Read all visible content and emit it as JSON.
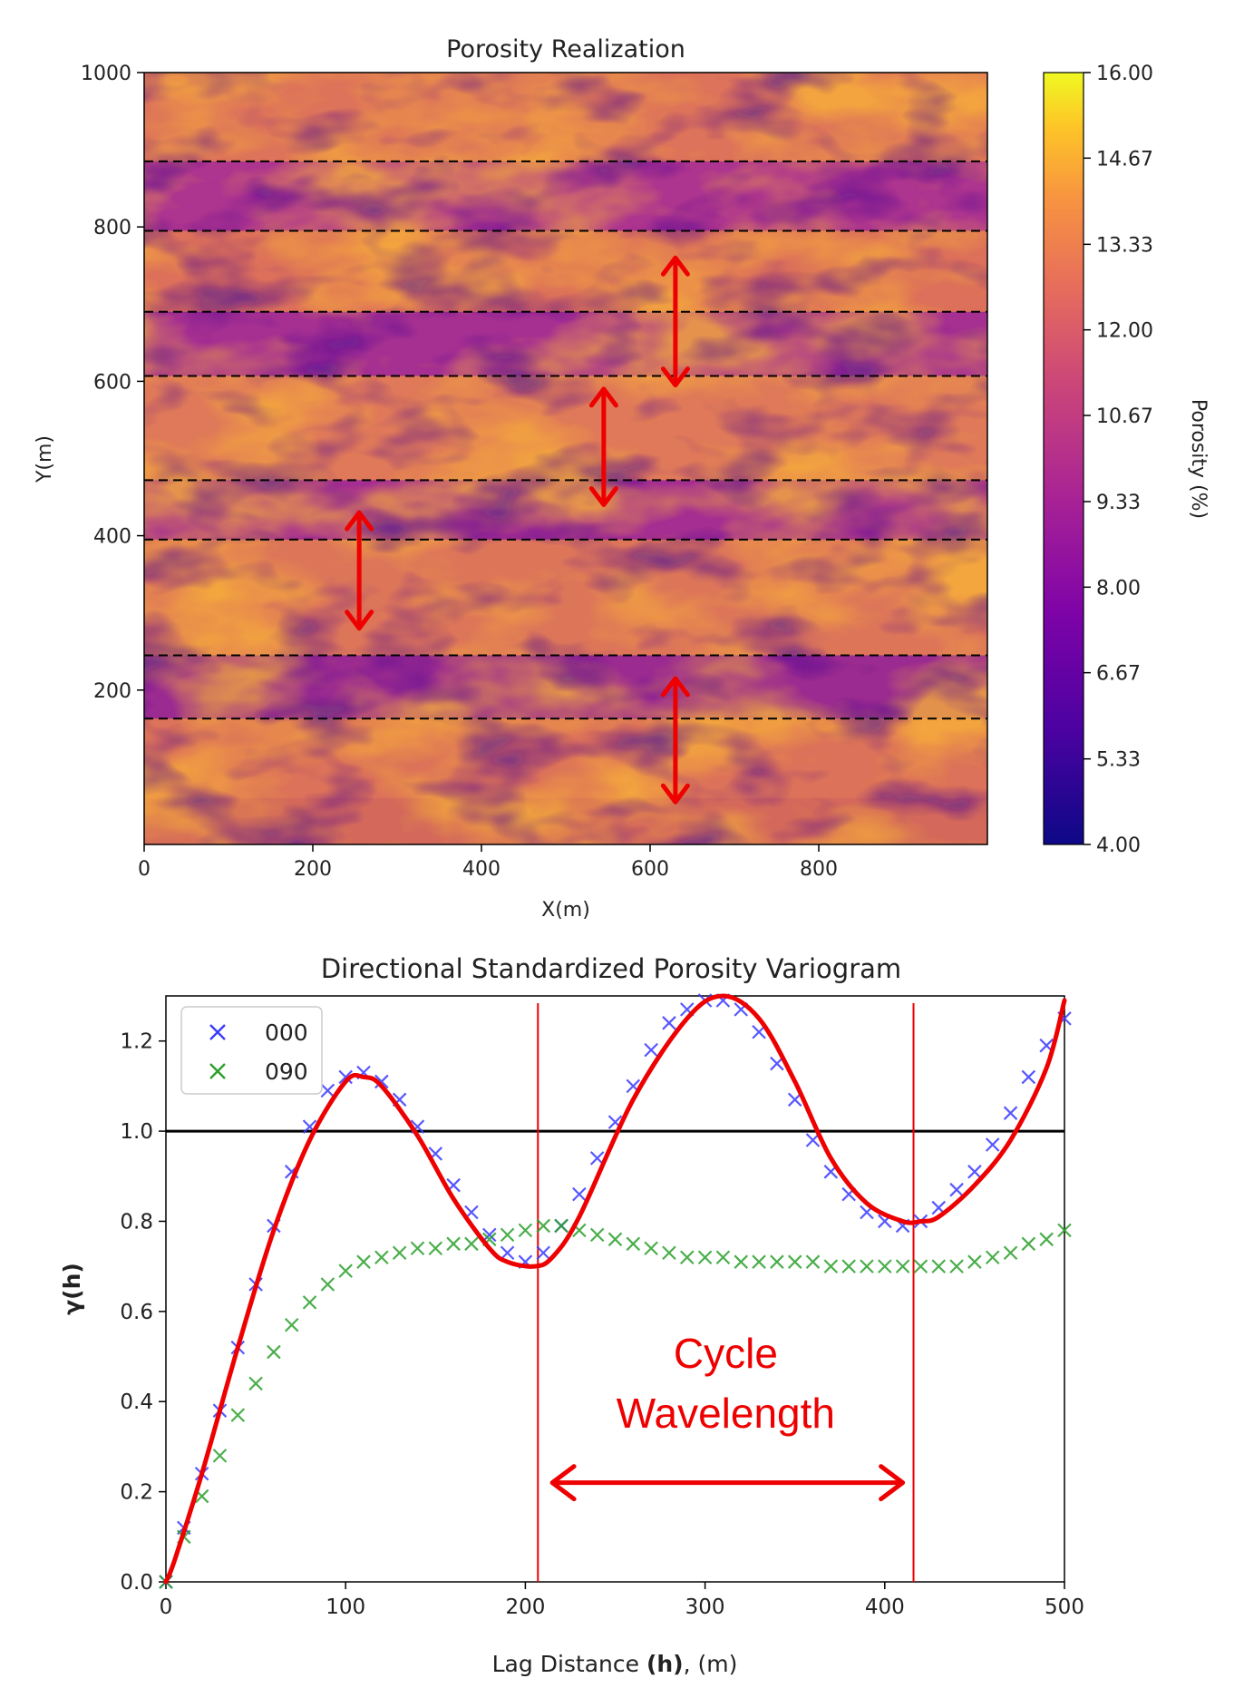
{
  "chart_data": [
    {
      "type": "heatmap",
      "title": "Porosity Realization",
      "xlabel": "X(m)",
      "ylabel": "Y(m)",
      "xlim": [
        0,
        1000
      ],
      "ylim": [
        0,
        1000
      ],
      "x_ticks": [
        "0",
        "200",
        "400",
        "600",
        "800"
      ],
      "y_ticks": [
        "200",
        "400",
        "600",
        "800",
        "1000"
      ],
      "colorbar": {
        "label": "Porosity (%)",
        "range": [
          4.0,
          16.0
        ],
        "ticks": [
          "16.00",
          "14.67",
          "13.33",
          "12.00",
          "10.67",
          "9.33",
          "8.00",
          "6.67",
          "5.33",
          "4.00"
        ],
        "colormap": "plasma"
      },
      "dashed_lines_y": [
        885,
        795,
        690,
        607,
        472,
        395,
        245,
        163
      ],
      "double_arrows": [
        {
          "x": 630,
          "y_from": 595,
          "y_to": 760
        },
        {
          "x": 545,
          "y_from": 440,
          "y_to": 590
        },
        {
          "x": 255,
          "y_from": 280,
          "y_to": 430
        },
        {
          "x": 630,
          "y_from": 55,
          "y_to": 215
        }
      ],
      "colors": {
        "dashes": "#000000",
        "arrows": "#ee0000"
      }
    },
    {
      "type": "scatter",
      "title": "Directional Standardized Porosity Variogram",
      "xlabel_prefix": "Lag Distance ",
      "xlabel_bold": "(h)",
      "xlabel_suffix": ", (m)",
      "ylabel": "γ(h)",
      "xlim": [
        0,
        500
      ],
      "ylim": [
        0,
        1.3
      ],
      "x_ticks": [
        "0",
        "100",
        "200",
        "300",
        "400",
        "500"
      ],
      "y_ticks": [
        "0.0",
        "0.2",
        "0.4",
        "0.6",
        "0.8",
        "1.0",
        "1.2"
      ],
      "sill": 1.0,
      "legend": {
        "position": "upper-left"
      },
      "series": [
        {
          "name": "000",
          "color": "#3a3aff",
          "marker": "x",
          "x": [
            0,
            10,
            20,
            30,
            40,
            50,
            60,
            70,
            80,
            90,
            100,
            110,
            120,
            130,
            140,
            150,
            160,
            170,
            180,
            190,
            200,
            210,
            220,
            230,
            240,
            250,
            260,
            270,
            280,
            290,
            300,
            310,
            320,
            330,
            340,
            350,
            360,
            370,
            380,
            390,
            400,
            410,
            420,
            430,
            440,
            450,
            460,
            470,
            480,
            490,
            500
          ],
          "y": [
            0.0,
            0.12,
            0.24,
            0.38,
            0.52,
            0.66,
            0.79,
            0.91,
            1.01,
            1.09,
            1.12,
            1.13,
            1.11,
            1.07,
            1.01,
            0.95,
            0.88,
            0.82,
            0.77,
            0.73,
            0.71,
            0.73,
            0.79,
            0.86,
            0.94,
            1.02,
            1.1,
            1.18,
            1.24,
            1.27,
            1.29,
            1.29,
            1.27,
            1.22,
            1.15,
            1.07,
            0.98,
            0.91,
            0.86,
            0.82,
            0.8,
            0.79,
            0.8,
            0.83,
            0.87,
            0.91,
            0.97,
            1.04,
            1.12,
            1.19,
            1.25
          ]
        },
        {
          "name": "090",
          "color": "#2ca02c",
          "marker": "x",
          "x": [
            0,
            10,
            20,
            30,
            40,
            50,
            60,
            70,
            80,
            90,
            100,
            110,
            120,
            130,
            140,
            150,
            160,
            170,
            180,
            190,
            200,
            210,
            220,
            230,
            240,
            250,
            260,
            270,
            280,
            290,
            300,
            310,
            320,
            330,
            340,
            350,
            360,
            370,
            380,
            390,
            400,
            410,
            420,
            430,
            440,
            450,
            460,
            470,
            480,
            490,
            500
          ],
          "y": [
            0.0,
            0.1,
            0.19,
            0.28,
            0.37,
            0.44,
            0.51,
            0.57,
            0.62,
            0.66,
            0.69,
            0.71,
            0.72,
            0.73,
            0.74,
            0.74,
            0.75,
            0.75,
            0.76,
            0.77,
            0.78,
            0.79,
            0.79,
            0.78,
            0.77,
            0.76,
            0.75,
            0.74,
            0.73,
            0.72,
            0.72,
            0.72,
            0.71,
            0.71,
            0.71,
            0.71,
            0.71,
            0.7,
            0.7,
            0.7,
            0.7,
            0.7,
            0.7,
            0.7,
            0.7,
            0.71,
            0.72,
            0.73,
            0.75,
            0.76,
            0.78
          ]
        }
      ],
      "model_fit": {
        "color": "#ee0000",
        "x": [
          0,
          5,
          20,
          40,
          60,
          80,
          100,
          110,
          120,
          140,
          160,
          180,
          190,
          205,
          215,
          230,
          260,
          290,
          310,
          330,
          350,
          370,
          390,
          410,
          420,
          430,
          450,
          470,
          490,
          500
        ],
        "y": [
          0.0,
          0.05,
          0.24,
          0.52,
          0.78,
          0.98,
          1.11,
          1.12,
          1.1,
          0.99,
          0.85,
          0.74,
          0.71,
          0.7,
          0.72,
          0.81,
          1.07,
          1.25,
          1.3,
          1.25,
          1.11,
          0.94,
          0.84,
          0.8,
          0.8,
          0.81,
          0.88,
          0.98,
          1.14,
          1.29
        ]
      },
      "cycle_lines_x": [
        207,
        416
      ],
      "annotation": {
        "line1": "Cycle",
        "line2": "Wavelength",
        "arrow_x": [
          215,
          410
        ],
        "arrow_y": 0.22
      }
    }
  ]
}
